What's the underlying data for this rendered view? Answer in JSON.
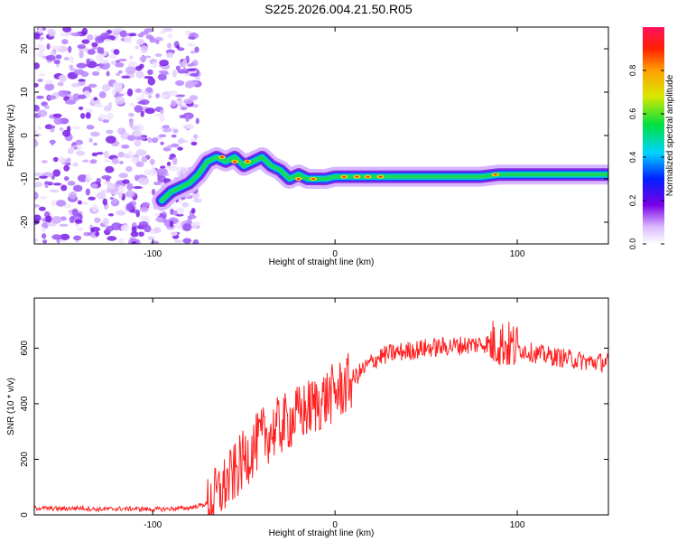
{
  "title": "S225.2026.004.21.50.R05",
  "colors": {
    "axis": "#000000",
    "snr_line": "#ff2020",
    "background": "#ffffff"
  },
  "chart_data": [
    {
      "type": "heatmap",
      "title": "S225.2026.004.21.50.R05",
      "xlabel": "Height of straight line (km)",
      "ylabel": "Frequency (Hz)",
      "xlim": [
        -165,
        150
      ],
      "ylim": [
        -25,
        25
      ],
      "x_ticks": [
        -100,
        0,
        100
      ],
      "y_ticks": [
        -20,
        -10,
        0,
        10,
        20
      ],
      "grid": false,
      "colorbar": {
        "label": "Normalized spectral amplitude",
        "range": [
          0.0,
          1.0
        ],
        "ticks": [
          0.0,
          0.2,
          0.4,
          0.6,
          0.8
        ],
        "tick_labels": [
          "0.0",
          "0.2",
          "0.4",
          "0.6",
          "0.8"
        ],
        "colormap": "rainbow (white-purple-blue-cyan-green-yellow-red-magenta)"
      },
      "features": {
        "noise_region_x": [
          -165,
          -75
        ],
        "carrier_trace": [
          {
            "x": -95,
            "y": -15
          },
          {
            "x": -90,
            "y": -13
          },
          {
            "x": -80,
            "y": -11
          },
          {
            "x": -75,
            "y": -9
          },
          {
            "x": -70,
            "y": -6
          },
          {
            "x": -65,
            "y": -5
          },
          {
            "x": -60,
            "y": -6
          },
          {
            "x": -55,
            "y": -5
          },
          {
            "x": -50,
            "y": -7
          },
          {
            "x": -45,
            "y": -6
          },
          {
            "x": -40,
            "y": -5
          },
          {
            "x": -35,
            "y": -7
          },
          {
            "x": -30,
            "y": -8
          },
          {
            "x": -25,
            "y": -10
          },
          {
            "x": -20,
            "y": -9
          },
          {
            "x": -15,
            "y": -10
          },
          {
            "x": -10,
            "y": -10
          },
          {
            "x": -5,
            "y": -10
          },
          {
            "x": 0,
            "y": -9.5
          },
          {
            "x": 10,
            "y": -9.5
          },
          {
            "x": 20,
            "y": -9.5
          },
          {
            "x": 40,
            "y": -9.5
          },
          {
            "x": 60,
            "y": -9.5
          },
          {
            "x": 80,
            "y": -9.5
          },
          {
            "x": 90,
            "y": -9
          },
          {
            "x": 100,
            "y": -9
          },
          {
            "x": 120,
            "y": -9
          },
          {
            "x": 150,
            "y": -9
          }
        ]
      }
    },
    {
      "type": "line",
      "xlabel": "Height of straight line (km)",
      "ylabel": "SNR (10 * v/v)",
      "xlim": [
        -165,
        150
      ],
      "ylim": [
        0,
        780
      ],
      "x_ticks": [
        -100,
        0,
        100
      ],
      "y_ticks": [
        0,
        200,
        400,
        600
      ],
      "grid": false,
      "series": [
        {
          "points": [
            {
              "x": -165,
              "y": 25
            },
            {
              "x": -150,
              "y": 22
            },
            {
              "x": -140,
              "y": 25
            },
            {
              "x": -130,
              "y": 20
            },
            {
              "x": -120,
              "y": 22
            },
            {
              "x": -110,
              "y": 22
            },
            {
              "x": -100,
              "y": 20
            },
            {
              "x": -90,
              "y": 22
            },
            {
              "x": -80,
              "y": 25
            },
            {
              "x": -70,
              "y": 40
            },
            {
              "x": -65,
              "y": 70
            },
            {
              "x": -60,
              "y": 110
            },
            {
              "x": -55,
              "y": 150
            },
            {
              "x": -50,
              "y": 200
            },
            {
              "x": -45,
              "y": 240
            },
            {
              "x": -40,
              "y": 280
            },
            {
              "x": -35,
              "y": 300
            },
            {
              "x": -30,
              "y": 320
            },
            {
              "x": -25,
              "y": 340
            },
            {
              "x": -20,
              "y": 360
            },
            {
              "x": -15,
              "y": 380
            },
            {
              "x": -10,
              "y": 400
            },
            {
              "x": -5,
              "y": 420
            },
            {
              "x": 0,
              "y": 440
            },
            {
              "x": 5,
              "y": 460
            },
            {
              "x": 10,
              "y": 490
            },
            {
              "x": 15,
              "y": 520
            },
            {
              "x": 20,
              "y": 550
            },
            {
              "x": 25,
              "y": 570
            },
            {
              "x": 30,
              "y": 580
            },
            {
              "x": 40,
              "y": 590
            },
            {
              "x": 50,
              "y": 600
            },
            {
              "x": 60,
              "y": 605
            },
            {
              "x": 70,
              "y": 610
            },
            {
              "x": 80,
              "y": 615
            },
            {
              "x": 90,
              "y": 620
            },
            {
              "x": 95,
              "y": 610
            },
            {
              "x": 100,
              "y": 600
            },
            {
              "x": 110,
              "y": 580
            },
            {
              "x": 120,
              "y": 570
            },
            {
              "x": 130,
              "y": 560
            },
            {
              "x": 140,
              "y": 550
            },
            {
              "x": 150,
              "y": 550
            }
          ]
        }
      ]
    }
  ]
}
